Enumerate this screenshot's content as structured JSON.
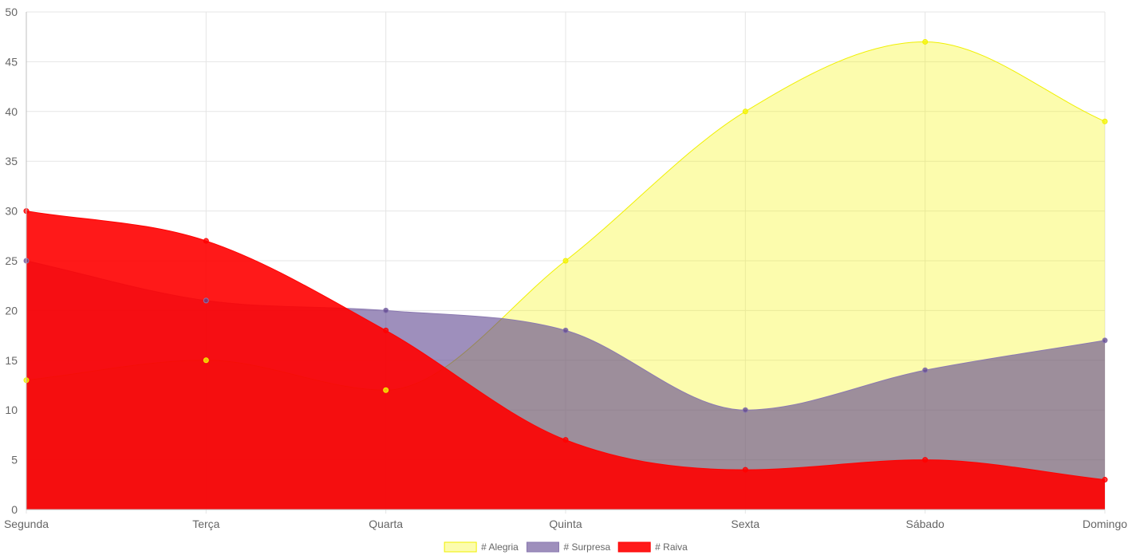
{
  "chart_data": {
    "type": "area",
    "categories": [
      "Segunda",
      "Terça",
      "Quarta",
      "Quinta",
      "Sexta",
      "Sábado",
      "Domingo"
    ],
    "ylim": [
      0,
      50
    ],
    "yticks": [
      0,
      5,
      10,
      15,
      20,
      25,
      30,
      35,
      40,
      45,
      50
    ],
    "grid": true,
    "legend_position": "bottom",
    "series": [
      {
        "name": "# Alegria",
        "values": [
          13,
          15,
          12,
          25,
          40,
          47,
          39
        ],
        "fill": "#f7f700",
        "fill_opacity": 0.32,
        "stroke": "#f0f000"
      },
      {
        "name": "# Surpresa",
        "values": [
          25,
          21,
          20,
          18,
          10,
          14,
          17
        ],
        "fill": "#5e4490",
        "fill_opacity": 0.6,
        "stroke": "#8a78b0"
      },
      {
        "name": "# Raiva",
        "values": [
          30,
          27,
          18,
          7,
          4,
          5,
          3
        ],
        "fill": "#ff0000",
        "fill_opacity": 0.9,
        "stroke": "#ff0000"
      }
    ]
  }
}
